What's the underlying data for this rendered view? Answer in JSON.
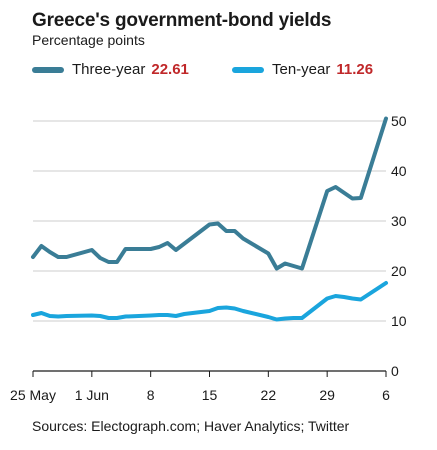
{
  "title": "Greece's government-bond yields",
  "subtitle": "Percentage points",
  "legend": [
    {
      "name": "Three-year",
      "value": "22.61",
      "color": "#3a7d96"
    },
    {
      "name": "Ten-year",
      "value": "11.26",
      "color": "#1aa5dd"
    }
  ],
  "source": "Sources: Electograph.com; Haver Analytics; Twitter",
  "chart_data": {
    "type": "line",
    "x_tick_labels": [
      "25 May",
      "1 Jun",
      "8",
      "15",
      "22",
      "29",
      "6"
    ],
    "x_tick_dates": [
      "2015-05-25",
      "2015-06-01",
      "2015-06-08",
      "2015-06-15",
      "2015-06-22",
      "2015-06-29",
      "2015-07-06"
    ],
    "x_range": [
      "2015-05-25",
      "2015-07-06"
    ],
    "ylim": [
      0,
      50
    ],
    "y_ticks": [
      0,
      10,
      20,
      30,
      40,
      50
    ],
    "y_axis_side": "right",
    "grid": true,
    "series": [
      {
        "name": "Three-year",
        "color": "#3a7d96",
        "points": [
          [
            "2015-05-25",
            22.8
          ],
          [
            "2015-05-26",
            25.0
          ],
          [
            "2015-05-27",
            23.8
          ],
          [
            "2015-05-28",
            22.8
          ],
          [
            "2015-05-29",
            22.8
          ],
          [
            "2015-06-01",
            24.2
          ],
          [
            "2015-06-02",
            22.6
          ],
          [
            "2015-06-03",
            21.8
          ],
          [
            "2015-06-04",
            21.8
          ],
          [
            "2015-06-05",
            24.4
          ],
          [
            "2015-06-08",
            24.4
          ],
          [
            "2015-06-09",
            24.8
          ],
          [
            "2015-06-10",
            25.6
          ],
          [
            "2015-06-11",
            24.2
          ],
          [
            "2015-06-15",
            29.3
          ],
          [
            "2015-06-16",
            29.5
          ],
          [
            "2015-06-17",
            28.0
          ],
          [
            "2015-06-18",
            28.0
          ],
          [
            "2015-06-19",
            26.5
          ],
          [
            "2015-06-22",
            23.5
          ],
          [
            "2015-06-23",
            20.5
          ],
          [
            "2015-06-24",
            21.5
          ],
          [
            "2015-06-26",
            20.5
          ],
          [
            "2015-06-29",
            36.0
          ],
          [
            "2015-06-30",
            36.8
          ],
          [
            "2015-07-02",
            34.5
          ],
          [
            "2015-07-03",
            34.6
          ],
          [
            "2015-07-06",
            50.5
          ]
        ]
      },
      {
        "name": "Ten-year",
        "color": "#1aa5dd",
        "points": [
          [
            "2015-05-25",
            11.2
          ],
          [
            "2015-05-26",
            11.6
          ],
          [
            "2015-05-27",
            11.0
          ],
          [
            "2015-05-28",
            10.9
          ],
          [
            "2015-05-29",
            11.0
          ],
          [
            "2015-06-01",
            11.1
          ],
          [
            "2015-06-02",
            11.0
          ],
          [
            "2015-06-03",
            10.6
          ],
          [
            "2015-06-04",
            10.6
          ],
          [
            "2015-06-05",
            10.9
          ],
          [
            "2015-06-08",
            11.1
          ],
          [
            "2015-06-09",
            11.2
          ],
          [
            "2015-06-10",
            11.2
          ],
          [
            "2015-06-11",
            11.0
          ],
          [
            "2015-06-12",
            11.4
          ],
          [
            "2015-06-15",
            12.0
          ],
          [
            "2015-06-16",
            12.6
          ],
          [
            "2015-06-17",
            12.7
          ],
          [
            "2015-06-18",
            12.5
          ],
          [
            "2015-06-19",
            12.0
          ],
          [
            "2015-06-22",
            10.8
          ],
          [
            "2015-06-23",
            10.3
          ],
          [
            "2015-06-24",
            10.5
          ],
          [
            "2015-06-25",
            10.6
          ],
          [
            "2015-06-26",
            10.6
          ],
          [
            "2015-06-29",
            14.5
          ],
          [
            "2015-06-30",
            15.0
          ],
          [
            "2015-07-01",
            14.8
          ],
          [
            "2015-07-02",
            14.5
          ],
          [
            "2015-07-03",
            14.3
          ],
          [
            "2015-07-06",
            17.6
          ]
        ]
      }
    ]
  }
}
